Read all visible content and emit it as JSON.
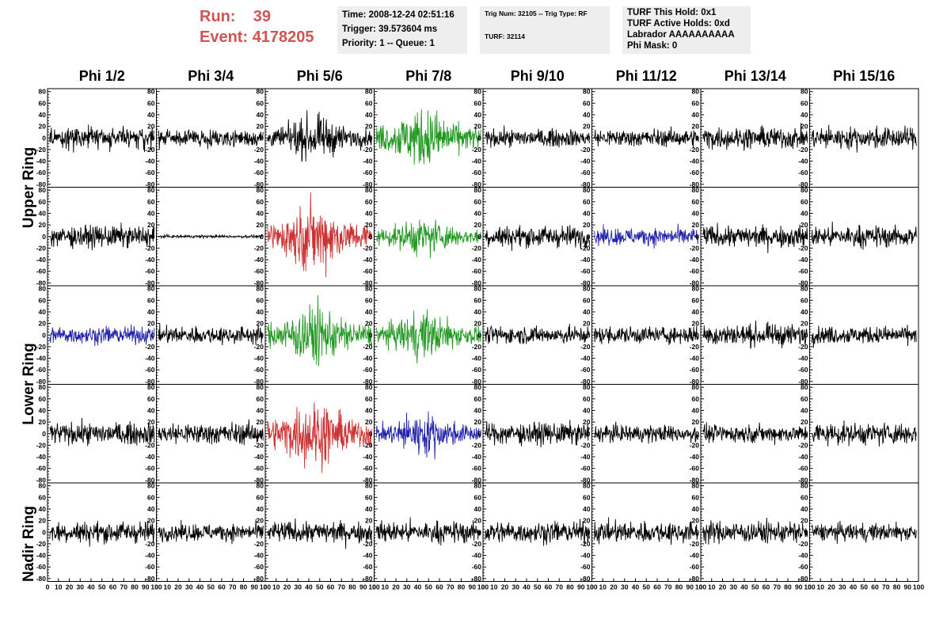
{
  "header": {
    "run_label": "Run:",
    "run_value": "39",
    "event_label": "Event:",
    "event_value": "4178205",
    "accent_color": "#d15353"
  },
  "info_box_1": {
    "time": "Time: 2008-12-24 02:51:16",
    "trigger": "Trigger: 39.573604 ms",
    "priority": "Priority: 1 -- Queue: 1"
  },
  "info_box_2": {
    "trig": "Trig Num: 32105 -- Trig Type: RF",
    "turf": "TURF: 32114"
  },
  "info_box_3": {
    "this_hold": "TURF This Hold: 0x1",
    "active_holds": "TURF Active Holds: 0xd",
    "labrador": "Labrador AAAAAAAAAA",
    "phi_mask": "Phi Mask: 0"
  },
  "chart_data": {
    "type": "line",
    "columns": [
      "Phi 1/2",
      "Phi 3/4",
      "Phi 5/6",
      "Phi 7/8",
      "Phi 9/10",
      "Phi 11/12",
      "Phi 13/14",
      "Phi 15/16"
    ],
    "ring_labels": [
      {
        "text": "Upper Ring",
        "spans_rows": [
          0,
          1
        ]
      },
      {
        "text": "Lower Ring",
        "spans_rows": [
          2,
          3
        ]
      },
      {
        "text": "Nadir Ring",
        "spans_rows": [
          4
        ]
      }
    ],
    "ylim": [
      -85,
      85
    ],
    "yticks": [
      -80,
      -60,
      -40,
      -20,
      0,
      20,
      40,
      60,
      80
    ],
    "xlim": [
      0,
      100
    ],
    "xticks": [
      0,
      10,
      20,
      30,
      40,
      50,
      60,
      70,
      80,
      90,
      100
    ],
    "colors": {
      "k": "#000000",
      "g": "#229922",
      "r": "#cc3333",
      "b": "#2222aa"
    },
    "amplitudes": [
      [
        15,
        12,
        25,
        35,
        12,
        12,
        15,
        15
      ],
      [
        15,
        2,
        40,
        22,
        15,
        12,
        15,
        15
      ],
      [
        12,
        12,
        35,
        28,
        12,
        12,
        15,
        12
      ],
      [
        15,
        15,
        40,
        25,
        15,
        12,
        12,
        15
      ],
      [
        15,
        12,
        15,
        15,
        15,
        15,
        15,
        12
      ]
    ],
    "trace_colors": [
      [
        "k",
        "k",
        "k",
        "g",
        "k",
        "k",
        "k",
        "k"
      ],
      [
        "k",
        "k",
        "r",
        "g",
        "k",
        "b",
        "k",
        "k"
      ],
      [
        "b",
        "k",
        "g",
        "g",
        "k",
        "k",
        "k",
        "k"
      ],
      [
        "k",
        "k",
        "r",
        "b",
        "k",
        "k",
        "k",
        "k"
      ],
      [
        "k",
        "k",
        "k",
        "k",
        "k",
        "k",
        "k",
        "k"
      ]
    ]
  }
}
